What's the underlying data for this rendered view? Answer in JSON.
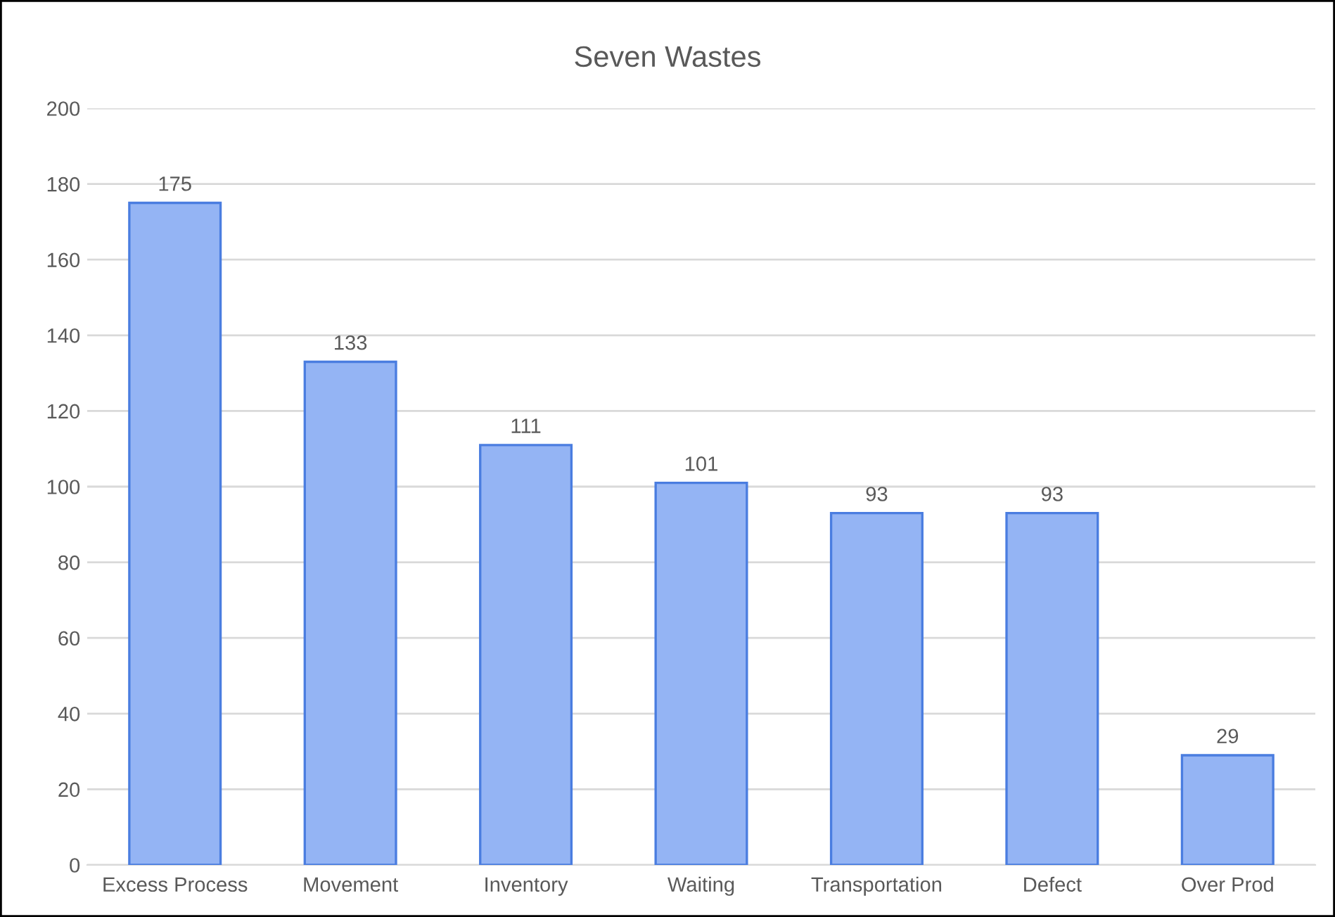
{
  "chart_data": {
    "type": "bar",
    "title": "Seven Wastes",
    "categories": [
      "Excess Process",
      "Movement",
      "Inventory",
      "Waiting",
      "Transportation",
      "Defect",
      "Over Prod"
    ],
    "values": [
      175,
      133,
      111,
      101,
      93,
      93,
      29
    ],
    "color": "#94b4f4",
    "ylim": [
      0,
      200
    ],
    "yticks": [
      0,
      20,
      40,
      60,
      80,
      100,
      120,
      140,
      160,
      180,
      200
    ],
    "grid": "y",
    "data_labels": true
  }
}
